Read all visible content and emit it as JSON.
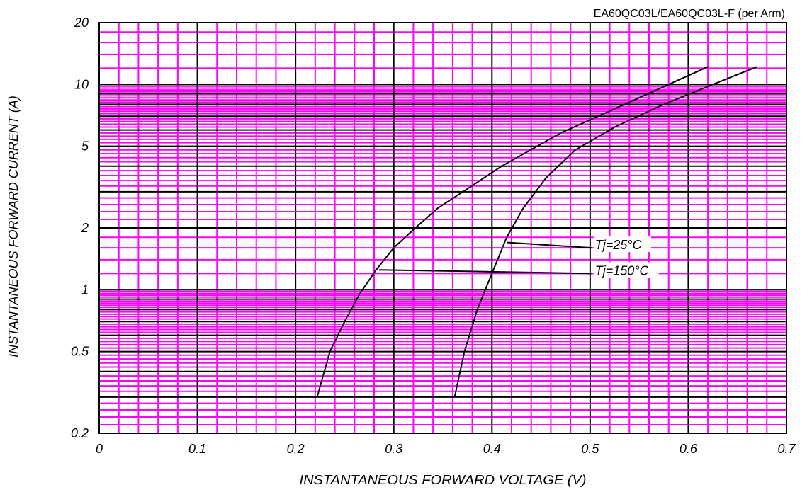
{
  "chart_data": {
    "type": "line",
    "title": "EA60QC03L/EA60QC03L-F (per Arm)",
    "xlabel": "INSTANTANEOUS FORWARD VOLTAGE (V)",
    "ylabel": "INSTANTANEOUS FORWARD CURRENT (A)",
    "xlim": [
      0,
      0.7
    ],
    "ylim": [
      0.2,
      20
    ],
    "yscale": "log",
    "grid": true,
    "colors": {
      "grid_minor": "#ff00ff",
      "grid_major": "#000000",
      "lines": "#000000"
    },
    "x_ticks": [
      0,
      0.1,
      0.2,
      0.3,
      0.4,
      0.5,
      0.6,
      0.7
    ],
    "x_tick_labels": [
      "0",
      "0.1",
      "0.2",
      "0.3",
      "0.4",
      "0.5",
      "0.6",
      "0.7"
    ],
    "y_ticks": [
      0.2,
      0.5,
      1,
      2,
      5,
      10,
      20
    ],
    "y_tick_labels": [
      "0.2",
      "0.5",
      "1",
      "2",
      "5",
      "10",
      "20"
    ],
    "series": [
      {
        "name": "Tj=25°C",
        "x": [
          0.362,
          0.372,
          0.385,
          0.4,
          0.415,
          0.432,
          0.455,
          0.485,
          0.525,
          0.575,
          0.625,
          0.67
        ],
        "y": [
          0.3,
          0.5,
          0.8,
          1.2,
          1.8,
          2.5,
          3.5,
          4.8,
          6.2,
          8.0,
          10.0,
          12.2
        ]
      },
      {
        "name": "Tj=150°C",
        "x": [
          0.222,
          0.235,
          0.25,
          0.265,
          0.282,
          0.3,
          0.322,
          0.345,
          0.375,
          0.41,
          0.47,
          0.53,
          0.58,
          0.62
        ],
        "y": [
          0.3,
          0.5,
          0.7,
          0.95,
          1.25,
          1.6,
          2.0,
          2.5,
          3.1,
          4.0,
          5.8,
          7.8,
          10.0,
          12.2
        ]
      }
    ],
    "annotations": [
      {
        "text": "Tj=25°C",
        "x": 0.505,
        "y": 1.6,
        "target_x": 0.415,
        "target_y": 1.7
      },
      {
        "text": "Tj=150°C",
        "x": 0.505,
        "y": 1.2,
        "target_x": 0.285,
        "target_y": 1.25
      }
    ]
  }
}
